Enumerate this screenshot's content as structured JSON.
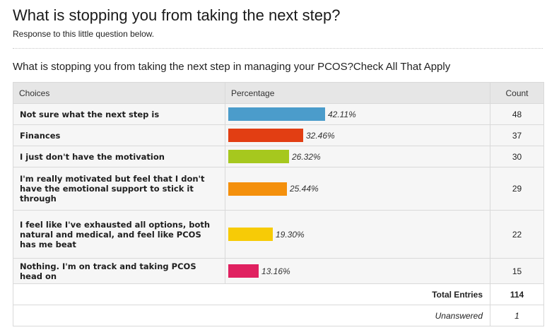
{
  "page": {
    "title": "What is stopping you from taking the next step?",
    "subtitle": "Response to this little question below."
  },
  "poll": {
    "question": "What is stopping you from taking the next step in managing your PCOS?Check All That Apply",
    "headers": {
      "choices": "Choices",
      "percentage": "Percentage",
      "count": "Count"
    },
    "rows": [
      {
        "choice": "Not sure what the next step is",
        "percent": 42.11,
        "percent_label": "42.11%",
        "count": "48",
        "color": "#4b9ccb"
      },
      {
        "choice": "Finances",
        "percent": 32.46,
        "percent_label": "32.46%",
        "count": "37",
        "color": "#e23e13"
      },
      {
        "choice": "I just don't have the motivation",
        "percent": 26.32,
        "percent_label": "26.32%",
        "count": "30",
        "color": "#a6c81e"
      },
      {
        "choice": "I'm really motivated but feel that I don't have the emotional support to stick it through",
        "percent": 25.44,
        "percent_label": "25.44%",
        "count": "29",
        "color": "#f4900c"
      },
      {
        "choice": "I feel like I've exhausted all options, both natural and medical, and feel like PCOS has me beat",
        "percent": 19.3,
        "percent_label": "19.30%",
        "count": "22",
        "color": "#f7cb06"
      },
      {
        "choice": "Nothing. I'm on track and taking PCOS head on",
        "percent": 13.16,
        "percent_label": "13.16%",
        "count": "15",
        "color": "#e02160"
      }
    ],
    "total_label": "Total Entries",
    "total_value": "114",
    "unanswered_label": "Unanswered",
    "unanswered_value": "1"
  }
}
